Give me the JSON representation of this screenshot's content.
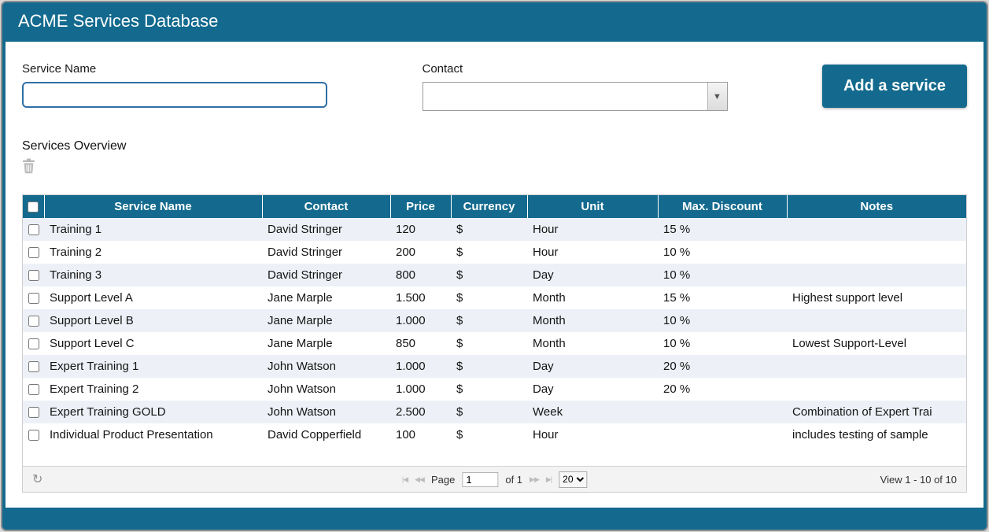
{
  "titlebar": {
    "title": "ACME Services Database"
  },
  "colors": {
    "accent": "#136a8e"
  },
  "form": {
    "service_name": {
      "label": "Service Name",
      "value": ""
    },
    "contact": {
      "label": "Contact",
      "value": ""
    },
    "add_button_label": "Add a service"
  },
  "overview": {
    "title": "Services Overview"
  },
  "table": {
    "columns": [
      "Service Name",
      "Contact",
      "Price",
      "Currency",
      "Unit",
      "Max. Discount",
      "Notes"
    ],
    "rows": [
      {
        "service": "Training 1",
        "contact": "David Stringer",
        "price": "120",
        "currency": "$",
        "unit": "Hour",
        "discount": "15 %",
        "notes": ""
      },
      {
        "service": "Training 2",
        "contact": "David Stringer",
        "price": "200",
        "currency": "$",
        "unit": "Hour",
        "discount": "10 %",
        "notes": ""
      },
      {
        "service": "Training 3",
        "contact": "David Stringer",
        "price": "800",
        "currency": "$",
        "unit": "Day",
        "discount": "10 %",
        "notes": ""
      },
      {
        "service": "Support Level A",
        "contact": "Jane Marple",
        "price": "1.500",
        "currency": "$",
        "unit": "Month",
        "discount": "15 %",
        "notes": "Highest support level"
      },
      {
        "service": "Support Level B",
        "contact": "Jane Marple",
        "price": "1.000",
        "currency": "$",
        "unit": "Month",
        "discount": "10 %",
        "notes": ""
      },
      {
        "service": "Support Level C",
        "contact": "Jane Marple",
        "price": "850",
        "currency": "$",
        "unit": "Month",
        "discount": "10 %",
        "notes": "Lowest Support-Level"
      },
      {
        "service": "Expert Training 1",
        "contact": "John Watson",
        "price": "1.000",
        "currency": "$",
        "unit": "Day",
        "discount": "20 %",
        "notes": ""
      },
      {
        "service": "Expert Training 2",
        "contact": "John Watson",
        "price": "1.000",
        "currency": "$",
        "unit": "Day",
        "discount": "20 %",
        "notes": ""
      },
      {
        "service": "Expert Training GOLD",
        "contact": "John Watson",
        "price": "2.500",
        "currency": "$",
        "unit": "Week",
        "discount": "",
        "notes": "Combination of Expert Trai"
      },
      {
        "service": "Individual Product Presentation",
        "contact": "David Copperfield",
        "price": "100",
        "currency": "$",
        "unit": "Hour",
        "discount": "",
        "notes": "includes testing of sample"
      }
    ]
  },
  "pager": {
    "page_label": "Page",
    "page_value": "1",
    "of_label": "of 1",
    "page_size": "20",
    "view_text": "View 1 - 10 of 10"
  },
  "icons": {
    "first": "|◀",
    "prev": "◀◀",
    "next": "▶▶",
    "last": "▶|",
    "refresh": "↻",
    "dropdown": "▼"
  }
}
